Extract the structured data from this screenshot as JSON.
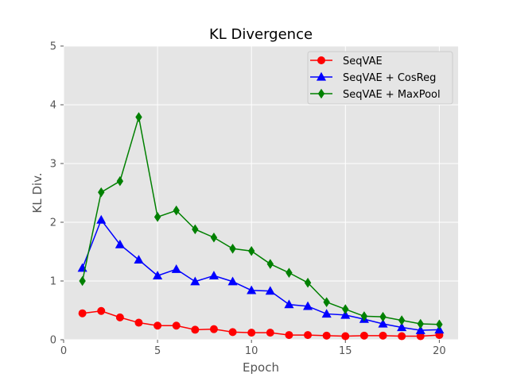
{
  "chart_data": {
    "type": "line",
    "title": "KL Divergence",
    "xlabel": "Epoch",
    "ylabel": "KL Div.",
    "xlim": [
      0,
      21
    ],
    "ylim": [
      0,
      5
    ],
    "xticks": [
      0,
      5,
      10,
      15,
      20
    ],
    "yticks": [
      0,
      1,
      2,
      3,
      4,
      5
    ],
    "grid": true,
    "legend_position": "top-right",
    "x": [
      1,
      2,
      3,
      4,
      5,
      6,
      7,
      8,
      9,
      10,
      11,
      12,
      13,
      14,
      15,
      16,
      17,
      18,
      19,
      20
    ],
    "series": [
      {
        "name": "SeqVAE",
        "color": "#ff0000",
        "marker": "circle",
        "values": [
          0.45,
          0.49,
          0.38,
          0.29,
          0.24,
          0.24,
          0.17,
          0.18,
          0.13,
          0.12,
          0.12,
          0.08,
          0.08,
          0.07,
          0.06,
          0.07,
          0.07,
          0.06,
          0.06,
          0.08
        ]
      },
      {
        "name": "SeqVAE + CosReg",
        "color": "#0000ff",
        "marker": "triangle",
        "values": [
          1.22,
          2.04,
          1.62,
          1.36,
          1.09,
          1.2,
          0.99,
          1.09,
          0.99,
          0.84,
          0.83,
          0.6,
          0.57,
          0.44,
          0.42,
          0.35,
          0.27,
          0.21,
          0.16,
          0.17
        ]
      },
      {
        "name": "SeqVAE + MaxPool",
        "color": "#008000",
        "marker": "diamond",
        "values": [
          1.0,
          2.51,
          2.7,
          3.79,
          2.09,
          2.2,
          1.88,
          1.74,
          1.55,
          1.51,
          1.29,
          1.14,
          0.97,
          0.64,
          0.52,
          0.4,
          0.39,
          0.33,
          0.27,
          0.26
        ]
      }
    ]
  }
}
